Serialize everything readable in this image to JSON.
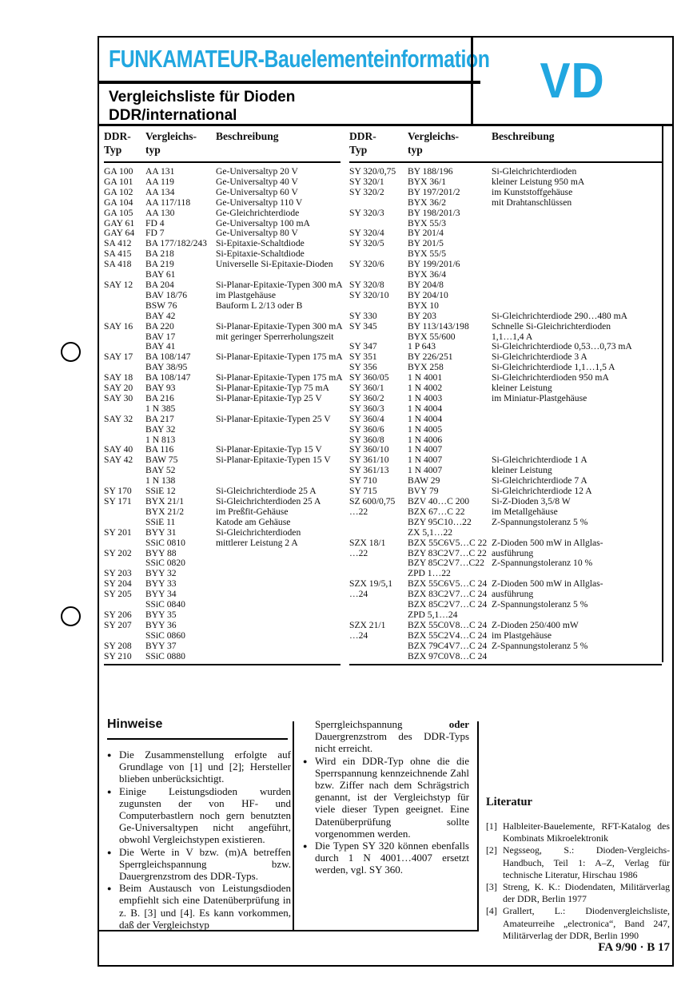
{
  "header": {
    "banner": "FUNKAMATEUR-Bauelementeinformation",
    "title_line1": "Vergleichsliste für Dioden",
    "title_line2": "DDR/international",
    "code": "VD",
    "accent_color": "#21a7e0"
  },
  "tables": [
    {
      "col_headers": [
        [
          "DDR-",
          "Typ"
        ],
        [
          "Vergleichs-",
          "typ"
        ],
        [
          "Beschreibung",
          ""
        ]
      ],
      "rows": [
        [
          "GA 100",
          "AA 131",
          "Ge-Universaltyp 20 V"
        ],
        [
          "GA 101",
          "AA 119",
          "Ge-Universaltyp 40 V"
        ],
        [
          "GA 102",
          "AA 134",
          "Ge-Universaltyp 60 V"
        ],
        [
          "GA 104",
          "AA 117/118",
          "Ge-Universaltyp 110 V"
        ],
        [
          "GA 105",
          "AA 130",
          "Ge-Gleichrichterdiode"
        ],
        [
          "GAY 61",
          "FD 4",
          "Ge-Universaltyp 100 mA"
        ],
        [
          "GAY 64",
          "FD 7",
          "Ge-Universaltyp 80 V"
        ],
        [
          "SA 412",
          "BA 177/182/243",
          "Si-Epitaxie-Schaltdiode"
        ],
        [
          "SA 415",
          "BA 218",
          "Si-Epitaxie-Schaltdiode"
        ],
        [
          "SA 418",
          "BA 219",
          "Universelle Si-Epitaxie-Dioden"
        ],
        [
          "",
          "BAY 61",
          ""
        ],
        [
          "SAY 12",
          "BA 204",
          "Si-Planar-Epitaxie-Typen 300 mA"
        ],
        [
          "",
          "BAV 18/76",
          "im Plastgehäuse"
        ],
        [
          "",
          "BSW 76",
          "Bauform L 2/13 oder B"
        ],
        [
          "",
          "BAY 42",
          ""
        ],
        [
          "SAY 16",
          "BA 220",
          "Si-Planar-Epitaxie-Typen 300 mA"
        ],
        [
          "",
          "BAV 17",
          "mit geringer Sperrerholungszeit"
        ],
        [
          "",
          "BAY 41",
          ""
        ],
        [
          "SAY 17",
          "BA 108/147",
          "Si-Planar-Epitaxie-Typen 175 mA"
        ],
        [
          "",
          "BAY 38/95",
          ""
        ],
        [
          "SAY 18",
          "BA 108/147",
          "Si-Planar-Epitaxie-Typen 175 mA"
        ],
        [
          "SAY 20",
          "BAY 93",
          "Si-Planar-Epitaxie-Typ 75 mA"
        ],
        [
          "SAY 30",
          "BA 216",
          "Si-Planar-Epitaxie-Typ 25 V"
        ],
        [
          "",
          "1 N 385",
          ""
        ],
        [
          "SAY 32",
          "BA 217",
          "Si-Planar-Epitaxie-Typen 25 V"
        ],
        [
          "",
          "BAY 32",
          ""
        ],
        [
          "",
          "1 N 813",
          ""
        ],
        [
          "SAY 40",
          "BA 116",
          "Si-Planar-Epitaxie-Typ 15 V"
        ],
        [
          "SAY 42",
          "BAW 75",
          "Si-Planar-Epitaxie-Typen 15 V"
        ],
        [
          "",
          "BAY 52",
          ""
        ],
        [
          "",
          "1 N 138",
          ""
        ],
        [
          "SY 170",
          "SSiE 12",
          "Si-Gleichrichterdiode 25 A"
        ],
        [
          "SY 171",
          "BYX 21/1",
          "Si-Gleichrichterdioden 25 A"
        ],
        [
          "",
          "BYX 21/2",
          "im Preßfit-Gehäuse"
        ],
        [
          "",
          "SSiE 11",
          "Katode am Gehäuse"
        ],
        [
          "SY 201",
          "BYY 31",
          "Si-Gleichrichterdioden"
        ],
        [
          "",
          "SSiC 0810",
          "mittlerer Leistung 2 A"
        ],
        [
          "SY 202",
          "BYY 88",
          ""
        ],
        [
          "",
          "SSiC 0820",
          ""
        ],
        [
          "SY 203",
          "BYY 32",
          ""
        ],
        [
          "SY 204",
          "BYY 33",
          ""
        ],
        [
          "SY 205",
          "BYY 34",
          ""
        ],
        [
          "",
          "SSiC 0840",
          ""
        ],
        [
          "SY 206",
          "BYY 35",
          ""
        ],
        [
          "SY 207",
          "BYY 36",
          ""
        ],
        [
          "",
          "SSiC 0860",
          ""
        ],
        [
          "SY 208",
          "BYY 37",
          ""
        ],
        [
          "SY 210",
          "SSiC 0880",
          ""
        ]
      ]
    },
    {
      "col_headers": [
        [
          "DDR-",
          "Typ"
        ],
        [
          "Vergleichs-",
          "typ"
        ],
        [
          "Beschreibung",
          ""
        ]
      ],
      "rows": [
        [
          "SY 320/0,75",
          "BY 188/196",
          "Si-Gleichrichterdioden"
        ],
        [
          "SY 320/1",
          "BYX 36/1",
          "kleiner Leistung 950 mA"
        ],
        [
          "SY 320/2",
          "BY 197/201/2",
          "im Kunststoffgehäuse"
        ],
        [
          "",
          "BYX 36/2",
          "mit Drahtanschlüssen"
        ],
        [
          "SY 320/3",
          "BY 198/201/3",
          ""
        ],
        [
          "",
          "BYX 55/3",
          ""
        ],
        [
          "SY 320/4",
          "BY 201/4",
          ""
        ],
        [
          "SY 320/5",
          "BY 201/5",
          ""
        ],
        [
          "",
          "BYX 55/5",
          ""
        ],
        [
          "SY 320/6",
          "BY 199/201/6",
          ""
        ],
        [
          "",
          "BYX 36/4",
          ""
        ],
        [
          "SY 320/8",
          "BY 204/8",
          ""
        ],
        [
          "SY 320/10",
          "BY 204/10",
          ""
        ],
        [
          "",
          "BYX 10",
          ""
        ],
        [
          "SY 330",
          "BY 203",
          "Si-Gleichrichterdiode 290…480 mA"
        ],
        [
          "SY 345",
          "BY 113/143/198",
          "Schnelle Si-Gleichrichterdioden"
        ],
        [
          "",
          "BYX 55/600",
          "1,1…1,4 A"
        ],
        [
          "SY 347",
          "1 P 643",
          "Si-Gleichrichterdiode 0,53…0,73 mA"
        ],
        [
          "SY 351",
          "BY 226/251",
          "Si-Gleichrichterdiode 3 A"
        ],
        [
          "SY 356",
          "BYX 258",
          "Si-Gleichrichterdiode 1,1…1,5 A"
        ],
        [
          "SY 360/05",
          "1 N 4001",
          "Si-Gleichrichterdioden 950 mA"
        ],
        [
          "SY 360/1",
          "1 N 4002",
          "kleiner Leistung"
        ],
        [
          "SY 360/2",
          "1 N 4003",
          "im Miniatur-Plastgehäuse"
        ],
        [
          "SY 360/3",
          "1 N 4004",
          ""
        ],
        [
          "SY 360/4",
          "1 N 4004",
          ""
        ],
        [
          "SY 360/6",
          "1 N 4005",
          ""
        ],
        [
          "SY 360/8",
          "1 N 4006",
          ""
        ],
        [
          "SY 360/10",
          "1 N 4007",
          ""
        ],
        [
          "SY 361/10",
          "1 N 4007",
          "Si-Gleichrichterdiode 1 A"
        ],
        [
          "SY 361/13",
          "1 N 4007",
          "kleiner Leistung"
        ],
        [
          "SY 710",
          "BAW 29",
          "Si-Gleichrichterdiode 7 A"
        ],
        [
          "SY 715",
          "BVY 79",
          "Si-Gleichrichterdiode 12 A"
        ],
        [
          "SZ 600/0,75",
          "BZV 40…C 200",
          "Si-Z-Dioden 3,5/8 W"
        ],
        [
          "…22",
          "BZX 67…C 22",
          "im Metallgehäuse"
        ],
        [
          "",
          "BZY 95C10…22",
          "Z-Spannungstoleranz 5 %"
        ],
        [
          "",
          "ZX 5,1…22",
          ""
        ],
        [
          "SZX 18/1",
          "BZX 55C6V5…C 22",
          "Z-Dioden 500 mW in Allglas-"
        ],
        [
          "…22",
          "BZY 83C2V7…C 22",
          "ausführung"
        ],
        [
          "",
          "BZY 85C2V7…C22",
          "Z-Spannungstoleranz 10 %"
        ],
        [
          "",
          "ZPD 1…22",
          ""
        ],
        [
          "SZX 19/5,1",
          "BZX 55C6V5…C 24",
          "Z-Dioden 500 mW in Allglas-"
        ],
        [
          "…24",
          "BZX 83C2V7…C 24",
          "ausführung"
        ],
        [
          "",
          "BZX 85C2V7…C 24",
          "Z-Spannungstoleranz 5 %"
        ],
        [
          "",
          "ZPD 5,1…24",
          ""
        ],
        [
          "SZX 21/1",
          "BZX 55C0V8…C 24",
          "Z-Dioden 250/400 mW"
        ],
        [
          "…24",
          "BZX 55C2V4…C 24",
          "im Plastgehäuse"
        ],
        [
          "",
          "BZX 79C4V7…C 24",
          "Z-Spannungstoleranz 5 %"
        ],
        [
          "",
          "BZX 97C0V8…C 24",
          ""
        ]
      ]
    }
  ],
  "hinweise": {
    "title": "Hinweise",
    "items": [
      "Die Zusammenstellung erfolgte auf Grundlage von [1] und [2]; Hersteller blieben unberücksichtigt.",
      "Einige Leistungsdioden wurden zugunsten der von HF- und Computerbastlern noch gern benutzten Ge-Universaltypen nicht angeführt, obwohl Vergleichstypen existieren.",
      "Die Werte in V bzw. (m)A betreffen Sperrgleichspannung bzw. Dauergrenzstrom des DDR-Typs.",
      "Beim Austausch von Leistungsdioden empfiehlt sich eine Datenüberprüfung in z. B. [3] und [4]. Es kann vorkommen, daß der Vergleichstyp"
    ]
  },
  "middle": {
    "continuation": {
      "before": "Sperrgleichspannung ",
      "bold": "oder",
      "after": " Dauergrenzstrom des DDR-Typs nicht erreicht."
    },
    "bullets": [
      "Wird ein DDR-Typ ohne die die Sperrspannung kennzeichnende Zahl bzw. Ziffer nach dem Schrägstrich genannt, ist der Vergleichstyp für viele dieser Typen geeignet. Eine Datenüberprüfung sollte vorgenommen werden.",
      "Die Typen SY 320 können ebenfalls durch 1 N 4001…4007 ersetzt werden, vgl. SY 360."
    ]
  },
  "literatur": {
    "title": "Literatur",
    "items": [
      {
        "label": "[1]",
        "text": "Halbleiter-Bauelemente, RFT-Katalog des Kombinats Mikroelektronik"
      },
      {
        "label": "[2]",
        "text": "Negsseog, S.: Dioden-Vergleichs-Handbuch, Teil 1: A–Z, Verlag für technische Literatur, Hirschau 1986"
      },
      {
        "label": "[3]",
        "text": "Streng, K. K.: Diodendaten, Militärverlag der DDR, Berlin 1977"
      },
      {
        "label": "[4]",
        "text": "Grallert, L.: Diodenvergleichsliste, Amateurreihe „electronica“, Band 247, Militärverlag der DDR, Berlin 1990"
      }
    ]
  },
  "footer": {
    "page_ref": "FA 9/90 · B 17"
  }
}
